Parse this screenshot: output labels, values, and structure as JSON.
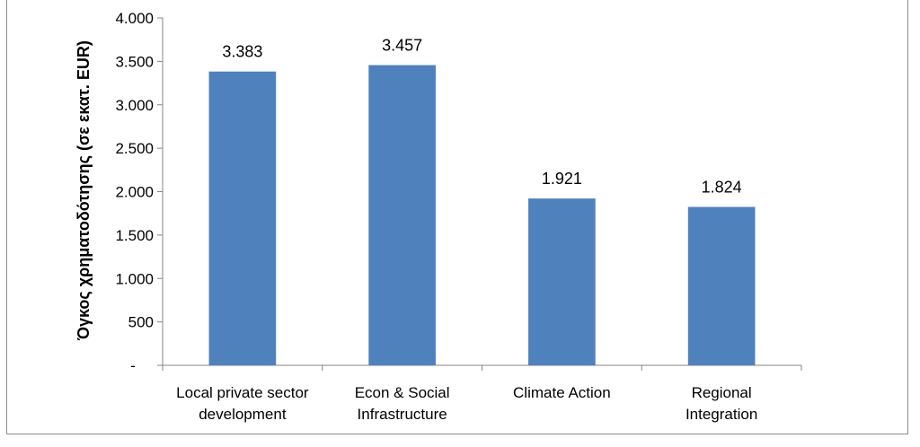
{
  "chart_data": {
    "type": "bar",
    "title": "",
    "xlabel": "",
    "ylabel": "Όγκος χρηματοδότησης (σε εκατ. EUR)",
    "categories": [
      [
        "Local private sector",
        "development"
      ],
      [
        "Econ & Social",
        "Infrastructure"
      ],
      [
        "Climate Action"
      ],
      [
        "Regional",
        "Integration"
      ]
    ],
    "values": [
      3383,
      3457,
      1921,
      1824
    ],
    "value_labels": [
      "3.383",
      "3.457",
      "1.921",
      "1.824"
    ],
    "ylim": [
      0,
      4000
    ],
    "yticks": [
      0,
      500,
      1000,
      1500,
      2000,
      2500,
      3000,
      3500,
      4000
    ],
    "ytick_labels": [
      "-",
      "500",
      "1.000",
      "1.500",
      "2.000",
      "2.500",
      "3.000",
      "3.500",
      "4.000"
    ],
    "grid": false,
    "legend": "none",
    "bar_color": "#4f81bd"
  }
}
